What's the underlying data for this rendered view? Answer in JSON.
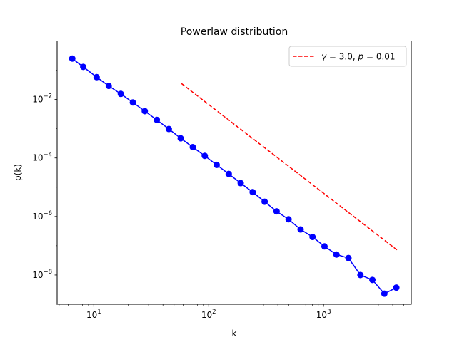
{
  "chart_data": {
    "type": "line",
    "title": "Powerlaw distribution",
    "xlabel": "k",
    "ylabel": "p(k)",
    "xscale": "log",
    "yscale": "log",
    "xlim": [
      4.8,
      5800
    ],
    "ylim": [
      1e-09,
      1.0
    ],
    "xticks": [
      {
        "value": 10,
        "base": "10",
        "exp": "1"
      },
      {
        "value": 100,
        "base": "10",
        "exp": "2"
      },
      {
        "value": 1000,
        "base": "10",
        "exp": "3"
      }
    ],
    "yticks": [
      {
        "value": 1e-08,
        "base": "10",
        "exp": "−8"
      },
      {
        "value": 1e-06,
        "base": "10",
        "exp": "−6"
      },
      {
        "value": 0.0001,
        "base": "10",
        "exp": "−4"
      },
      {
        "value": 0.01,
        "base": "10",
        "exp": "−2"
      }
    ],
    "grid": false,
    "legend_position": "top-right",
    "legend": {
      "gamma_symbol": "γ",
      "gamma_value": " = 3.0, ",
      "p_symbol": "p",
      "p_value": " = 0.01"
    },
    "series": [
      {
        "style": "solid-markers",
        "color": "#0000ff",
        "x": [
          6.5,
          8.1,
          10.6,
          13.5,
          17.2,
          21.9,
          27.8,
          35.4,
          45.0,
          57.1,
          72.7,
          92.5,
          117.5,
          149.5,
          190,
          241.5,
          307,
          390,
          496,
          631,
          802,
          1019,
          1296,
          1647,
          2094,
          2662,
          3383,
          4300
        ],
        "y": [
          0.25,
          0.13,
          0.058,
          0.029,
          0.0155,
          0.0079,
          0.004,
          0.002,
          0.00098,
          0.00047,
          0.000235,
          0.000118,
          5.8e-05,
          2.85e-05,
          1.38e-05,
          6.8e-06,
          3.2e-06,
          1.5e-06,
          8e-07,
          3.6e-07,
          2e-07,
          9.5e-08,
          5e-08,
          3.8e-08,
          1e-08,
          6.8e-09,
          2.3e-09,
          3.7e-09
        ]
      },
      {
        "style": "dashed",
        "color": "#ff0000",
        "x": [
          58,
          4400
        ],
        "y": [
          0.035,
          7e-08
        ]
      }
    ]
  }
}
